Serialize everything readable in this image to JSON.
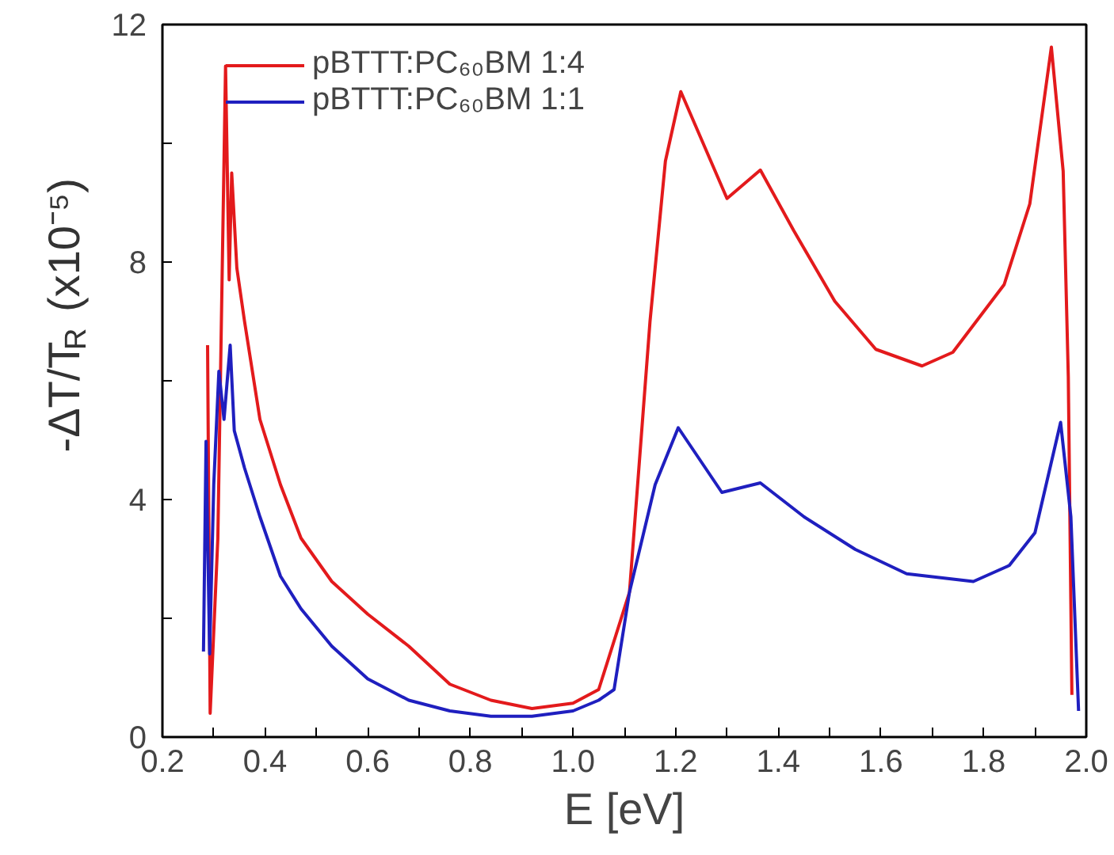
{
  "chart_data": {
    "type": "line",
    "xlabel": "E [eV]",
    "ylabel": "-ΔT/T$_{R}$ (x10⁻⁵)",
    "xlim": [
      0.2,
      2.0
    ],
    "ylim": [
      0,
      12
    ],
    "xticks": [
      0.2,
      {
        "value": 0.3,
        "label": null
      },
      0.4,
      {
        "value": 0.5,
        "label": null
      },
      0.6,
      {
        "value": 0.7,
        "label": null
      },
      0.8,
      {
        "value": 0.9,
        "label": null
      },
      {
        "value": 1.0,
        "label": "1.0"
      },
      {
        "value": 1.1,
        "label": null
      },
      1.2,
      {
        "value": 1.3,
        "label": null
      },
      1.4,
      {
        "value": 1.5,
        "label": null
      },
      1.6,
      {
        "value": 1.7,
        "label": null
      },
      1.8,
      {
        "value": 1.9,
        "label": null
      },
      {
        "value": 2.0,
        "label": "2.0"
      }
    ],
    "yticks": [
      0,
      {
        "value": 2,
        "label": null
      },
      4,
      {
        "value": 6,
        "label": null
      },
      8,
      {
        "value": 10,
        "label": null
      },
      12
    ],
    "grid": false,
    "legend": "top left",
    "line_style": "solid",
    "series": [
      {
        "name": "pBTTT:PC₆₀BM 1:4",
        "color": "#e31a1c",
        "x": [
          0.288,
          0.293,
          0.308,
          0.323,
          0.33,
          0.335,
          0.345,
          0.36,
          0.39,
          0.43,
          0.47,
          0.53,
          0.6,
          0.68,
          0.76,
          0.84,
          0.92,
          1.0,
          1.05,
          1.11,
          1.15,
          1.18,
          1.21,
          1.3,
          1.365,
          1.43,
          1.51,
          1.59,
          1.68,
          1.74,
          1.84,
          1.89,
          1.932,
          1.955,
          1.965,
          1.972
        ],
        "values": [
          6.6,
          0.4,
          3.35,
          11.3,
          7.7,
          9.5,
          7.9,
          7.0,
          5.35,
          4.25,
          3.35,
          2.62,
          2.07,
          1.53,
          0.89,
          0.62,
          0.48,
          0.57,
          0.8,
          2.44,
          7.0,
          9.7,
          10.87,
          9.07,
          9.55,
          8.53,
          7.34,
          6.53,
          6.25,
          6.48,
          7.62,
          8.98,
          11.62,
          9.53,
          6.07,
          0.71
        ]
      },
      {
        "name": "pBTTT:PC₆₀BM 1:1",
        "color": "#1f1fbf",
        "x": [
          0.28,
          0.285,
          0.292,
          0.3,
          0.31,
          0.32,
          0.332,
          0.34,
          0.36,
          0.39,
          0.43,
          0.47,
          0.53,
          0.6,
          0.68,
          0.76,
          0.84,
          0.92,
          1.0,
          1.05,
          1.08,
          1.11,
          1.16,
          1.205,
          1.29,
          1.365,
          1.45,
          1.55,
          1.65,
          1.78,
          1.85,
          1.9,
          1.95,
          1.97,
          1.985
        ],
        "values": [
          1.44,
          4.98,
          1.4,
          4.25,
          6.16,
          5.35,
          6.6,
          5.16,
          4.53,
          3.71,
          2.71,
          2.16,
          1.53,
          0.98,
          0.62,
          0.44,
          0.35,
          0.35,
          0.44,
          0.62,
          0.8,
          2.44,
          4.25,
          5.21,
          4.12,
          4.28,
          3.71,
          3.16,
          2.75,
          2.62,
          2.89,
          3.44,
          5.3,
          3.71,
          0.44
        ]
      }
    ]
  }
}
